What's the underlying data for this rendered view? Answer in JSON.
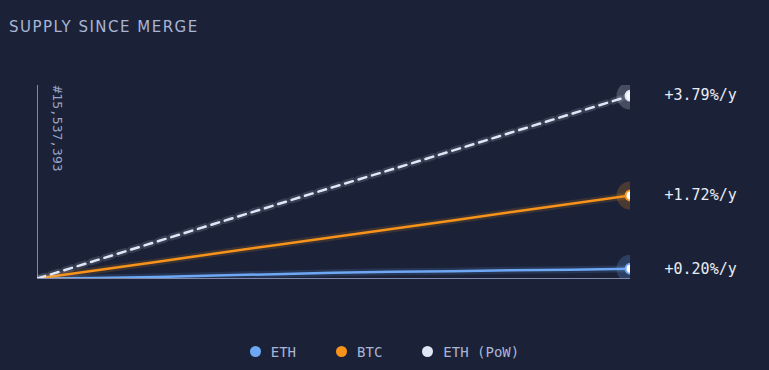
{
  "chart_data": {
    "type": "line",
    "title": "SUPPLY SINCE MERGE",
    "annotation": "#15,537,393",
    "x": [
      0,
      0.1,
      0.2,
      0.3,
      0.4,
      0.5,
      0.6,
      0.7,
      0.8,
      0.9,
      1
    ],
    "xlim": [
      0,
      1
    ],
    "ylim": [
      0,
      4
    ],
    "xticks": [],
    "yticks": [],
    "tick_labels": false,
    "grid": false,
    "legend": "bottom",
    "series": [
      {
        "name": "ETH",
        "color": "#6ea8f5",
        "line_style": "solid",
        "values": [
          0,
          0.01,
          0.03,
          0.06,
          0.09,
          0.12,
          0.14,
          0.15,
          0.17,
          0.18,
          0.2
        ],
        "value_labels": [
          null,
          null,
          null,
          null,
          null,
          null,
          null,
          null,
          null,
          null,
          "+0.20%/y"
        ]
      },
      {
        "name": "BTC",
        "color": "#f7931a",
        "line_style": "solid",
        "values": [
          0,
          0.17,
          0.34,
          0.52,
          0.69,
          0.86,
          1.03,
          1.2,
          1.38,
          1.55,
          1.72
        ],
        "value_labels": [
          null,
          null,
          null,
          null,
          null,
          null,
          null,
          null,
          null,
          null,
          "+1.72%/y"
        ]
      },
      {
        "name": "ETH (PoW)",
        "color": "#dfe6f5",
        "line_style": "dashed",
        "values": [
          0,
          0.38,
          0.76,
          1.14,
          1.52,
          1.9,
          2.27,
          2.65,
          3.03,
          3.41,
          3.79
        ],
        "value_labels": [
          null,
          null,
          null,
          null,
          null,
          null,
          null,
          null,
          null,
          null,
          "+3.79%/y"
        ]
      }
    ]
  }
}
